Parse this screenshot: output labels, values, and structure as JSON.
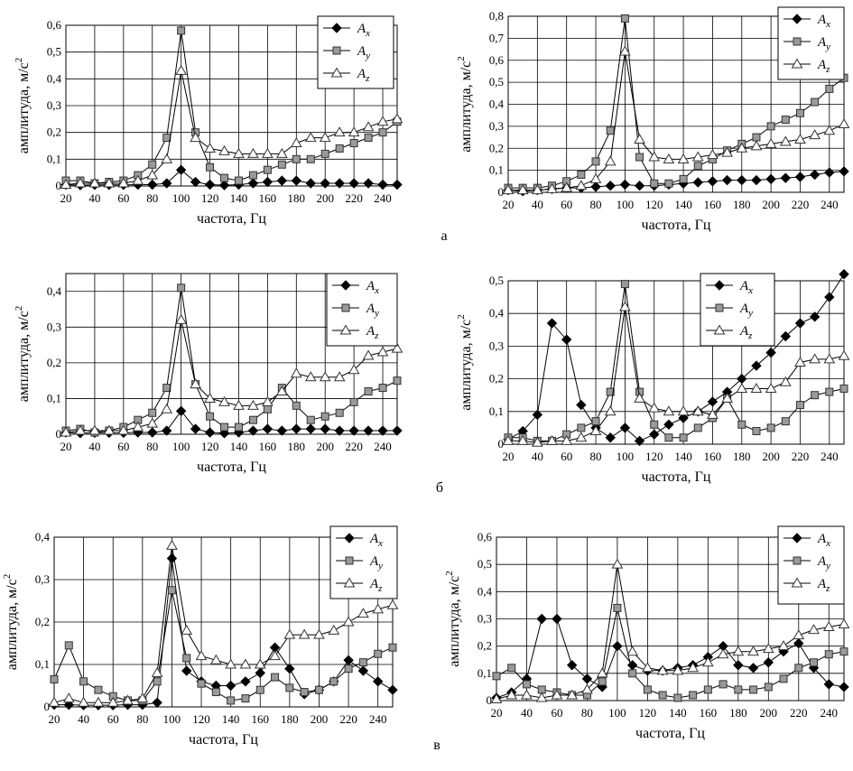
{
  "panel_letters": [
    "а",
    "б",
    "в"
  ],
  "subscripts": [
    "x",
    "y",
    "z"
  ],
  "chart_data": [
    {
      "type": "line",
      "panel": "а",
      "side": "left",
      "xlabel": "частота, Гц",
      "ylabel": "амплитуда, м/с",
      "ylabel_sup": "2",
      "xlim": [
        20,
        250
      ],
      "ylim": [
        0,
        0.6
      ],
      "xticks": [
        20,
        40,
        60,
        80,
        100,
        120,
        140,
        160,
        180,
        200,
        220,
        240
      ],
      "yticks": [
        0,
        0.1,
        0.2,
        0.3,
        0.4,
        0.5,
        0.6
      ],
      "ytick_labels": [
        "0",
        "0,1",
        "0,2",
        "0,3",
        "0,4",
        "0,5",
        "0,6"
      ],
      "x": [
        20,
        30,
        40,
        50,
        60,
        70,
        80,
        90,
        100,
        110,
        120,
        130,
        140,
        150,
        160,
        170,
        180,
        190,
        200,
        210,
        220,
        230,
        240,
        250
      ],
      "series": [
        {
          "name": "A",
          "sub": "x",
          "values": [
            0.005,
            0.003,
            0.004,
            0.004,
            0.004,
            0.005,
            0.005,
            0.01,
            0.06,
            0.015,
            0.005,
            0.003,
            0.005,
            0.01,
            0.015,
            0.02,
            0.02,
            0.01,
            0.01,
            0.01,
            0.01,
            0.01,
            0.005,
            0.005
          ]
        },
        {
          "name": "A",
          "sub": "y",
          "values": [
            0.02,
            0.02,
            0.01,
            0.015,
            0.02,
            0.04,
            0.08,
            0.18,
            0.58,
            0.2,
            0.07,
            0.03,
            0.02,
            0.04,
            0.06,
            0.08,
            0.1,
            0.1,
            0.12,
            0.14,
            0.16,
            0.18,
            0.2,
            0.24
          ]
        },
        {
          "name": "A",
          "sub": "z",
          "values": [
            0.005,
            0.01,
            0.01,
            0.01,
            0.01,
            0.02,
            0.04,
            0.1,
            0.43,
            0.18,
            0.14,
            0.13,
            0.12,
            0.12,
            0.12,
            0.12,
            0.16,
            0.18,
            0.18,
            0.2,
            0.2,
            0.22,
            0.24,
            0.25
          ]
        }
      ]
    },
    {
      "type": "line",
      "panel": "а",
      "side": "right",
      "xlabel": "частота, Гц",
      "ylabel": "амплитуда, м/с",
      "ylabel_sup": "2",
      "xlim": [
        20,
        250
      ],
      "ylim": [
        0,
        0.8
      ],
      "xticks": [
        20,
        40,
        60,
        80,
        100,
        120,
        140,
        160,
        180,
        200,
        220,
        240
      ],
      "yticks": [
        0,
        0.1,
        0.2,
        0.3,
        0.4,
        0.5,
        0.6,
        0.7,
        0.8
      ],
      "ytick_labels": [
        "0",
        "0,1",
        "0,2",
        "0,3",
        "0,4",
        "0,5",
        "0,6",
        "0,7",
        "0,8"
      ],
      "x": [
        20,
        30,
        40,
        50,
        60,
        70,
        80,
        90,
        100,
        110,
        120,
        130,
        140,
        150,
        160,
        170,
        180,
        190,
        200,
        210,
        220,
        230,
        240,
        250
      ],
      "series": [
        {
          "name": "A",
          "sub": "x",
          "values": [
            0.01,
            0.005,
            0.01,
            0.015,
            0.02,
            0.02,
            0.025,
            0.03,
            0.035,
            0.03,
            0.03,
            0.035,
            0.04,
            0.045,
            0.05,
            0.055,
            0.055,
            0.055,
            0.06,
            0.065,
            0.07,
            0.08,
            0.09,
            0.095
          ]
        },
        {
          "name": "A",
          "sub": "y",
          "values": [
            0.02,
            0.02,
            0.02,
            0.03,
            0.05,
            0.08,
            0.14,
            0.28,
            0.79,
            0.16,
            0.04,
            0.04,
            0.06,
            0.12,
            0.15,
            0.19,
            0.22,
            0.25,
            0.3,
            0.33,
            0.36,
            0.41,
            0.47,
            0.52
          ]
        },
        {
          "name": "A",
          "sub": "z",
          "values": [
            0.01,
            0.01,
            0.01,
            0.015,
            0.02,
            0.03,
            0.06,
            0.14,
            0.64,
            0.24,
            0.16,
            0.15,
            0.15,
            0.16,
            0.17,
            0.18,
            0.2,
            0.21,
            0.22,
            0.23,
            0.24,
            0.26,
            0.28,
            0.31
          ]
        }
      ]
    },
    {
      "type": "line",
      "panel": "б",
      "side": "left",
      "xlabel": "частота, Гц",
      "ylabel": "амплитуда, м/с",
      "ylabel_sup": "2",
      "xlim": [
        20,
        250
      ],
      "ylim": [
        0,
        0.45
      ],
      "xticks": [
        20,
        40,
        60,
        80,
        100,
        120,
        140,
        160,
        180,
        200,
        220,
        240
      ],
      "yticks": [
        0,
        0.1,
        0.2,
        0.3,
        0.4
      ],
      "ytick_labels": [
        "0",
        "0,1",
        "0,2",
        "0,3",
        "0,4"
      ],
      "x": [
        20,
        30,
        40,
        50,
        60,
        70,
        80,
        90,
        100,
        110,
        120,
        130,
        140,
        150,
        160,
        170,
        180,
        190,
        200,
        210,
        220,
        230,
        240,
        250
      ],
      "series": [
        {
          "name": "A",
          "sub": "x",
          "values": [
            0.005,
            0.003,
            0.004,
            0.004,
            0.004,
            0.005,
            0.005,
            0.01,
            0.065,
            0.015,
            0.005,
            0.003,
            0.005,
            0.01,
            0.015,
            0.01,
            0.015,
            0.015,
            0.015,
            0.01,
            0.01,
            0.01,
            0.01,
            0.01
          ]
        },
        {
          "name": "A",
          "sub": "y",
          "values": [
            0.01,
            0.015,
            0.005,
            0.01,
            0.02,
            0.04,
            0.06,
            0.13,
            0.41,
            0.14,
            0.05,
            0.02,
            0.02,
            0.04,
            0.07,
            0.13,
            0.08,
            0.04,
            0.05,
            0.06,
            0.09,
            0.12,
            0.13,
            0.15
          ]
        },
        {
          "name": "A",
          "sub": "z",
          "values": [
            0.005,
            0.01,
            0.01,
            0.01,
            0.01,
            0.02,
            0.03,
            0.07,
            0.32,
            0.14,
            0.1,
            0.09,
            0.08,
            0.08,
            0.09,
            0.12,
            0.17,
            0.16,
            0.16,
            0.16,
            0.18,
            0.22,
            0.23,
            0.24
          ]
        }
      ]
    },
    {
      "type": "line",
      "panel": "б",
      "side": "right",
      "xlabel": "частота, Гц",
      "ylabel": "амплитуда, м/с",
      "ylabel_sup": "2",
      "xlim": [
        20,
        250
      ],
      "ylim": [
        0,
        0.5
      ],
      "xticks": [
        20,
        40,
        60,
        80,
        100,
        120,
        140,
        160,
        180,
        200,
        220,
        240
      ],
      "yticks": [
        0,
        0.1,
        0.2,
        0.3,
        0.4,
        0.5
      ],
      "ytick_labels": [
        "0",
        "0,1",
        "0,2",
        "0,3",
        "0,4",
        "0,5"
      ],
      "x": [
        20,
        30,
        40,
        50,
        60,
        70,
        80,
        90,
        100,
        110,
        120,
        130,
        140,
        150,
        160,
        170,
        180,
        190,
        200,
        210,
        220,
        230,
        240,
        250
      ],
      "series": [
        {
          "name": "A",
          "sub": "x",
          "values": [
            0.015,
            0.04,
            0.09,
            0.37,
            0.32,
            0.12,
            0.05,
            0.02,
            0.05,
            0.01,
            0.03,
            0.06,
            0.08,
            0.1,
            0.13,
            0.16,
            0.2,
            0.24,
            0.28,
            0.33,
            0.37,
            0.39,
            0.45,
            0.52
          ]
        },
        {
          "name": "A",
          "sub": "y",
          "values": [
            0.02,
            0.02,
            0.01,
            0.01,
            0.03,
            0.05,
            0.07,
            0.16,
            0.49,
            0.16,
            0.06,
            0.02,
            0.02,
            0.05,
            0.08,
            0.14,
            0.06,
            0.04,
            0.05,
            0.07,
            0.12,
            0.15,
            0.16,
            0.17
          ]
        },
        {
          "name": "A",
          "sub": "z",
          "values": [
            0.01,
            0.01,
            0.005,
            0.01,
            0.01,
            0.02,
            0.04,
            0.1,
            0.42,
            0.14,
            0.11,
            0.1,
            0.1,
            0.1,
            0.09,
            0.14,
            0.17,
            0.17,
            0.17,
            0.19,
            0.25,
            0.26,
            0.26,
            0.27
          ]
        }
      ]
    },
    {
      "type": "line",
      "panel": "в",
      "side": "left",
      "xlabel": "частота, Гц",
      "ylabel": "амплитуда, м/с",
      "ylabel_sup": "2",
      "xlim": [
        20,
        250
      ],
      "ylim": [
        0,
        0.4
      ],
      "xticks": [
        20,
        40,
        60,
        80,
        100,
        120,
        140,
        160,
        180,
        200,
        220,
        240
      ],
      "yticks": [
        0,
        0.1,
        0.2,
        0.3,
        0.4
      ],
      "ytick_labels": [
        "0",
        "0,1",
        "0,2",
        "0,3",
        "0,4"
      ],
      "x": [
        20,
        30,
        40,
        50,
        60,
        70,
        80,
        90,
        100,
        110,
        120,
        130,
        140,
        150,
        160,
        170,
        180,
        190,
        200,
        210,
        220,
        230,
        240,
        250
      ],
      "series": [
        {
          "name": "A",
          "sub": "x",
          "values": [
            0.005,
            0.005,
            0.004,
            0.004,
            0.004,
            0.005,
            0.005,
            0.01,
            0.35,
            0.085,
            0.06,
            0.05,
            0.05,
            0.06,
            0.08,
            0.14,
            0.09,
            0.03,
            0.04,
            0.06,
            0.11,
            0.085,
            0.06,
            0.04
          ]
        },
        {
          "name": "A",
          "sub": "y",
          "values": [
            0.065,
            0.145,
            0.06,
            0.04,
            0.025,
            0.015,
            0.015,
            0.06,
            0.275,
            0.115,
            0.055,
            0.035,
            0.015,
            0.02,
            0.04,
            0.07,
            0.045,
            0.035,
            0.04,
            0.06,
            0.09,
            0.105,
            0.125,
            0.14
          ]
        },
        {
          "name": "A",
          "sub": "z",
          "values": [
            0.01,
            0.02,
            0.01,
            0.01,
            0.01,
            0.015,
            0.02,
            0.08,
            0.38,
            0.18,
            0.12,
            0.11,
            0.1,
            0.1,
            0.1,
            0.12,
            0.17,
            0.17,
            0.17,
            0.18,
            0.2,
            0.22,
            0.23,
            0.24
          ]
        }
      ]
    },
    {
      "type": "line",
      "panel": "в",
      "side": "right",
      "xlabel": "частота, Гц",
      "ylabel": "амплитуда, м/с",
      "ylabel_sup": "2",
      "xlim": [
        20,
        250
      ],
      "ylim": [
        0,
        0.6
      ],
      "xticks": [
        20,
        40,
        60,
        80,
        100,
        120,
        140,
        160,
        180,
        200,
        220,
        240
      ],
      "yticks": [
        0,
        0.1,
        0.2,
        0.3,
        0.4,
        0.5,
        0.6
      ],
      "ytick_labels": [
        "0",
        "0,1",
        "0,2",
        "0,3",
        "0,4",
        "0,5",
        "0,6"
      ],
      "x": [
        20,
        30,
        40,
        50,
        60,
        70,
        80,
        90,
        100,
        110,
        120,
        130,
        140,
        150,
        160,
        170,
        180,
        190,
        200,
        210,
        220,
        230,
        240,
        250
      ],
      "series": [
        {
          "name": "A",
          "sub": "x",
          "values": [
            0.01,
            0.03,
            0.08,
            0.3,
            0.3,
            0.13,
            0.08,
            0.05,
            0.2,
            0.13,
            0.11,
            0.11,
            0.12,
            0.13,
            0.16,
            0.2,
            0.13,
            0.12,
            0.14,
            0.18,
            0.21,
            0.12,
            0.06,
            0.05
          ]
        },
        {
          "name": "A",
          "sub": "y",
          "values": [
            0.09,
            0.12,
            0.06,
            0.04,
            0.03,
            0.02,
            0.02,
            0.07,
            0.34,
            0.1,
            0.04,
            0.02,
            0.01,
            0.02,
            0.04,
            0.06,
            0.04,
            0.04,
            0.05,
            0.08,
            0.12,
            0.14,
            0.17,
            0.18
          ]
        },
        {
          "name": "A",
          "sub": "z",
          "values": [
            0.005,
            0.02,
            0.02,
            0.01,
            0.02,
            0.02,
            0.04,
            0.1,
            0.5,
            0.18,
            0.12,
            0.11,
            0.11,
            0.12,
            0.14,
            0.17,
            0.18,
            0.18,
            0.19,
            0.2,
            0.24,
            0.26,
            0.27,
            0.28
          ]
        }
      ]
    }
  ]
}
